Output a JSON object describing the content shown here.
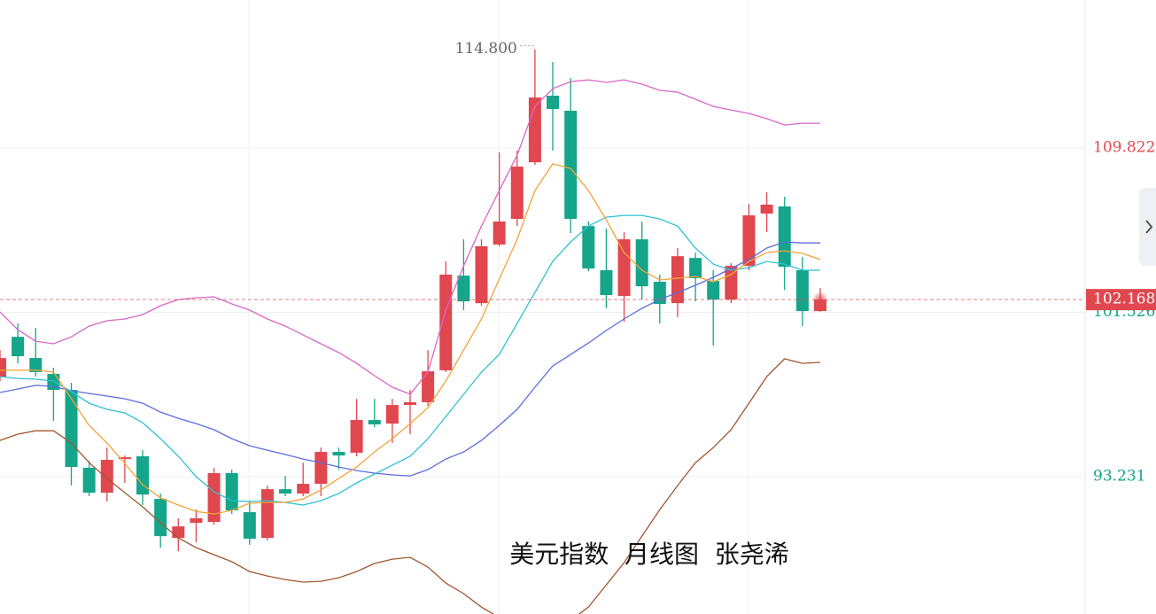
{
  "chart_data": {
    "type": "candlestick",
    "title": "美元指数  月线图  张尧浠",
    "open": [
      98.28,
      100.29,
      99.22,
      98.42,
      97.61,
      93.68,
      92.42,
      94.12,
      94.26,
      92.11,
      90.14,
      90.9,
      90.95,
      93.41,
      91.44,
      90.14,
      92.6,
      92.38,
      92.87,
      94.48,
      94.44,
      96.09,
      95.91,
      96.85,
      96.99,
      98.6,
      103.38,
      101.99,
      104.95,
      106.24,
      109.1,
      112.46,
      111.7,
      105.88,
      103.65,
      102.35,
      105.21,
      103.07,
      101.99,
      104.27,
      103.11,
      102.17,
      103.87,
      106.51,
      106.87,
      103.65,
      101.59
    ],
    "high": [
      99.62,
      100.97,
      100.74,
      98.73,
      97.97,
      94.03,
      94.7,
      94.3,
      94.57,
      92.38,
      91.13,
      91.57,
      93.68,
      93.59,
      92.02,
      92.78,
      93.27,
      93.94,
      94.7,
      94.7,
      97.16,
      97.16,
      97.16,
      97.61,
      99.62,
      104.1,
      105.21,
      105.21,
      109.6,
      109.69,
      114.8,
      114.16,
      113.35,
      106.11,
      105.75,
      105.57,
      106.11,
      103.43,
      104.77,
      104.54,
      103.65,
      104.01,
      107.0,
      107.58,
      107.36,
      104.32,
      102.75
    ],
    "low": [
      98.06,
      98.95,
      98.28,
      96.05,
      92.78,
      92.25,
      91.98,
      92.92,
      91.8,
      89.65,
      89.47,
      89.92,
      90.81,
      91.35,
      89.79,
      90.01,
      92.25,
      92.25,
      92.25,
      93.59,
      94.26,
      95.73,
      94.93,
      95.38,
      96.81,
      98.51,
      101.64,
      101.86,
      104.86,
      105.88,
      108.97,
      109.69,
      105.53,
      103.6,
      101.73,
      101.05,
      102.17,
      100.97,
      101.28,
      102.08,
      99.85,
      101.99,
      103.65,
      105.57,
      102.66,
      100.83,
      101.55
    ],
    "close": [
      99.22,
      99.31,
      98.51,
      97.61,
      93.72,
      92.42,
      94.08,
      94.21,
      92.33,
      90.23,
      90.72,
      91.13,
      93.41,
      91.53,
      90.1,
      92.6,
      92.38,
      92.87,
      94.48,
      94.3,
      96.09,
      95.87,
      96.85,
      96.99,
      98.55,
      103.43,
      102.08,
      104.86,
      106.11,
      108.88,
      112.37,
      111.79,
      106.24,
      103.74,
      102.4,
      105.21,
      102.84,
      101.95,
      104.36,
      103.25,
      102.17,
      103.87,
      106.42,
      106.96,
      103.83,
      101.59,
      102.17
    ],
    "up_color": "#e0474f",
    "down_color": "#14a58a",
    "series": [
      {
        "color": "#d966c8",
        "values": [
          101.55,
          100.65,
          100.07,
          99.94,
          100.29,
          100.83,
          101.1,
          101.19,
          101.41,
          101.86,
          102.17,
          102.26,
          102.31,
          101.95,
          101.64,
          101.19,
          100.83,
          100.38,
          99.94,
          99.49,
          98.95,
          98.33,
          97.75,
          97.39,
          98.51,
          101.64,
          103.87,
          105.88,
          107.67,
          109.46,
          111.92,
          112.82,
          113.17,
          113.26,
          113.13,
          113.26,
          113.04,
          112.73,
          112.64,
          112.28,
          111.92,
          111.74,
          111.56,
          111.3,
          110.98,
          111.07,
          111.07
        ]
      },
      {
        "color": "#a0562e",
        "values": [
          95.06,
          95.38,
          95.55,
          95.55,
          94.93,
          93.94,
          93.14,
          92.42,
          91.71,
          90.9,
          90.14,
          89.65,
          89.29,
          88.94,
          88.44,
          88.22,
          88.04,
          87.91,
          87.95,
          88.13,
          88.44,
          88.85,
          89.07,
          89.16,
          88.67,
          87.86,
          87.33,
          86.65,
          86.12,
          85.76,
          85.31,
          85.54,
          85.98,
          86.65,
          87.77,
          88.89,
          90.23,
          91.57,
          92.78,
          93.94,
          94.7,
          95.6,
          96.94,
          98.28,
          99.18,
          98.95,
          99.0
        ]
      },
      {
        "color": "#5a6de0",
        "values": [
          97.48,
          97.66,
          97.84,
          97.79,
          97.57,
          97.43,
          97.3,
          97.16,
          96.94,
          96.49,
          96.18,
          95.91,
          95.6,
          95.15,
          94.79,
          94.57,
          94.35,
          94.12,
          93.94,
          93.72,
          93.54,
          93.41,
          93.32,
          93.27,
          93.59,
          94.12,
          94.48,
          95.06,
          95.82,
          96.63,
          97.75,
          98.82,
          99.4,
          99.98,
          100.61,
          101.19,
          101.73,
          102.17,
          102.53,
          102.89,
          103.29,
          103.74,
          104.19,
          104.77,
          105.08,
          105.03,
          105.03
        ]
      },
      {
        "color": "#2fc0d4",
        "values": [
          98.28,
          98.19,
          98.15,
          98.06,
          97.52,
          96.94,
          96.63,
          96.45,
          95.96,
          95.15,
          94.26,
          93.23,
          92.47,
          92.02,
          91.98,
          92.02,
          91.93,
          91.8,
          92.02,
          92.38,
          92.92,
          93.36,
          93.81,
          94.26,
          95.15,
          96.27,
          97.39,
          98.51,
          99.4,
          100.97,
          102.53,
          104.1,
          105.08,
          105.88,
          106.33,
          106.42,
          106.42,
          106.24,
          105.88,
          104.77,
          103.96,
          103.65,
          103.78,
          104.1,
          103.96,
          103.65,
          103.65
        ]
      },
      {
        "color": "#f2a33a",
        "values": [
          98.6,
          98.6,
          98.6,
          98.51,
          97.17,
          95.82,
          94.93,
          93.9,
          92.83,
          92.16,
          91.8,
          91.48,
          91.35,
          91.53,
          91.89,
          91.93,
          91.93,
          92.11,
          92.56,
          93.14,
          93.72,
          94.48,
          95.15,
          95.91,
          96.72,
          98.06,
          99.62,
          101.19,
          103.2,
          105.21,
          107.67,
          109.02,
          108.79,
          107.67,
          106.2,
          104.54,
          103.65,
          103.16,
          103.25,
          103.34,
          103.07,
          103.43,
          104.1,
          104.54,
          104.63,
          104.5,
          104.19
        ]
      }
    ],
    "ylim": [
      86.3,
      117.29
    ],
    "yticks": [
      93.231,
      101.526,
      109.822
    ],
    "grid": true,
    "last_price": 102.168,
    "max_label": "114.800"
  }
}
